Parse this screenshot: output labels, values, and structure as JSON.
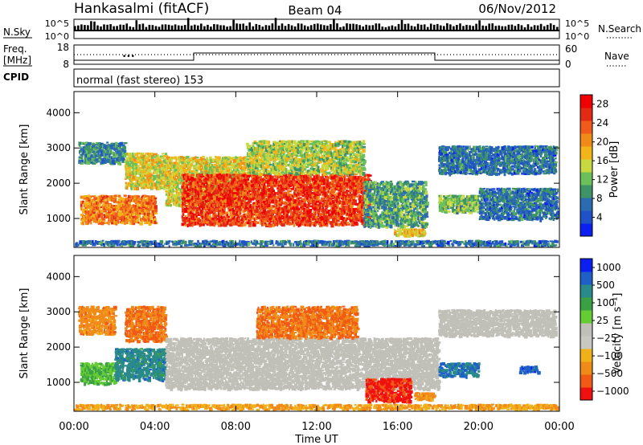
{
  "header": {
    "station": "Hankasalmi (fitACF)",
    "beam": "Beam 04",
    "date": "06/Nov/2012"
  },
  "strips": {
    "nsky_label": "N.Sky",
    "nsky_ticks": [
      "10^5",
      "10^0"
    ],
    "nsearch_label": "N.Search",
    "nsearch_ticks": [
      "10^5",
      "10^0"
    ],
    "freq_label_line1": "Freq.",
    "freq_label_line2": "[MHz]",
    "freq_ticks": [
      "18",
      "8"
    ],
    "nave_label": "Nave",
    "nave_ticks": [
      "60",
      "0"
    ],
    "cpid_label": "CPID",
    "cpid_text": "normal (fast stereo) 153"
  },
  "colors": {
    "power_scale": [
      "#0a1ff0",
      "#1f52c6",
      "#2b6bb0",
      "#3e9466",
      "#6cc05c",
      "#c8d840",
      "#f2b418",
      "#f28a1a",
      "#f05a1a",
      "#e22a14",
      "#f00000"
    ],
    "velocity_scale": [
      "#0a1ff0",
      "#1e5fc8",
      "#2a8a8a",
      "#3aa046",
      "#66cc33",
      "#c0c0b8",
      "#c8c8c0",
      "#f0b01a",
      "#f08a18",
      "#f05a14",
      "#f01010"
    ],
    "ground_scatter": "#c0c0b8"
  },
  "chart_data": [
    {
      "type": "heatmap",
      "name": "power-panel",
      "ylabel": "Slant Range [km]",
      "xlabel": "Time UT",
      "xlim": [
        "00:00",
        "24:00"
      ],
      "ylim": [
        180,
        4600
      ],
      "y_ticks": [
        "1000",
        "2000",
        "3000",
        "4000"
      ],
      "x_ticks": [
        "00:00",
        "04:00",
        "08:00",
        "12:00",
        "16:00",
        "20:00",
        "00:00"
      ],
      "colorbar_label": "Power [dB]",
      "colorbar_ticks": [
        "4",
        "8",
        "12",
        "16",
        "20",
        "24",
        "28"
      ],
      "colorbar_range": [
        0,
        30
      ],
      "regions": [
        {
          "t0": 0.3,
          "t1": 4.0,
          "r0": 900,
          "r1": 1700,
          "value": 22
        },
        {
          "t0": 0.2,
          "t1": 2.5,
          "r0": 2600,
          "r1": 3200,
          "value": 8
        },
        {
          "t0": 2.5,
          "t1": 4.6,
          "r0": 1900,
          "r1": 2900,
          "value": 16
        },
        {
          "t0": 4.5,
          "t1": 8.5,
          "r0": 1400,
          "r1": 2800,
          "value": 16
        },
        {
          "t0": 5.3,
          "t1": 14.6,
          "r0": 850,
          "r1": 2300,
          "value": 26
        },
        {
          "t0": 8.5,
          "t1": 14.3,
          "r0": 2300,
          "r1": 3250,
          "value": 14
        },
        {
          "t0": 14.3,
          "t1": 17.4,
          "r0": 800,
          "r1": 2100,
          "value": 10
        },
        {
          "t0": 15.8,
          "t1": 17.3,
          "r0": 550,
          "r1": 750,
          "value": 18
        },
        {
          "t0": 18.0,
          "t1": 23.8,
          "r0": 2300,
          "r1": 3100,
          "value": 6
        },
        {
          "t0": 18.0,
          "t1": 20.0,
          "r0": 1200,
          "r1": 1700,
          "value": 12
        },
        {
          "t0": 20.0,
          "t1": 24.0,
          "r0": 1000,
          "r1": 1900,
          "value": 6
        },
        {
          "t0": 0.0,
          "t1": 24.0,
          "r0": 180,
          "r1": 420,
          "value": 6
        }
      ]
    },
    {
      "type": "heatmap",
      "name": "velocity-panel",
      "ylabel": "Slant Range [km]",
      "xlabel": "Time UT",
      "xlim": [
        "00:00",
        "24:00"
      ],
      "ylim": [
        180,
        4600
      ],
      "y_ticks": [
        "1000",
        "2000",
        "3000",
        "4000"
      ],
      "x_ticks": [
        "00:00",
        "04:00",
        "08:00",
        "12:00",
        "16:00",
        "20:00",
        "00:00"
      ],
      "colorbar_label": "Velocity [m s⁻¹]",
      "colorbar_ticks": [
        "1000",
        "500",
        "100",
        "25",
        "−25",
        "−100",
        "−500",
        "−1000"
      ],
      "regions": [
        {
          "t0": 0.3,
          "t1": 2.0,
          "r0": 1000,
          "r1": 1600,
          "value": 100
        },
        {
          "t0": 2.0,
          "t1": 4.5,
          "r0": 1100,
          "r1": 2000,
          "value": 300
        },
        {
          "t0": 0.2,
          "t1": 2.0,
          "r0": 2400,
          "r1": 3200,
          "value": -300
        },
        {
          "t0": 2.5,
          "t1": 4.5,
          "r0": 2200,
          "r1": 3200,
          "value": -400
        },
        {
          "t0": 4.5,
          "t1": 18.0,
          "r0": 850,
          "r1": 2300,
          "value": 0
        },
        {
          "t0": 9.0,
          "t1": 14.0,
          "r0": 2300,
          "r1": 3200,
          "value": -400
        },
        {
          "t0": 14.4,
          "t1": 16.6,
          "r0": 500,
          "r1": 1150,
          "value": -800
        },
        {
          "t0": 16.8,
          "t1": 17.8,
          "r0": 550,
          "r1": 750,
          "value": -300
        },
        {
          "t0": 18.0,
          "t1": 23.8,
          "r0": 2350,
          "r1": 3100,
          "value": 0
        },
        {
          "t0": 18.0,
          "t1": 20.0,
          "r0": 1200,
          "r1": 1600,
          "value": 400
        },
        {
          "t0": 22.0,
          "t1": 23.0,
          "r0": 1300,
          "r1": 1500,
          "value": 600
        },
        {
          "t0": 0.0,
          "t1": 24.0,
          "r0": 180,
          "r1": 420,
          "value": -200
        }
      ]
    }
  ]
}
